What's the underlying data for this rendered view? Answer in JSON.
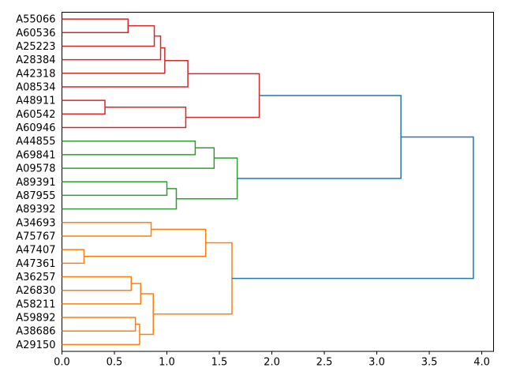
{
  "figure": {
    "background": "#ffffff"
  },
  "chart_data": {
    "type": "dendrogram",
    "orientation": "left-leaves-right-root",
    "title": "",
    "xlabel": "",
    "ylabel": "",
    "grid": false,
    "legend": null,
    "xlim": [
      0,
      4.1125
    ],
    "x_tick_values": [
      0,
      0.5,
      1.0,
      1.5,
      2.0,
      2.5,
      3.0,
      3.5,
      4.0
    ],
    "x_ticks": [
      "0.0",
      "0.5",
      "1.0",
      "1.5",
      "2.0",
      "2.5",
      "3.0",
      "3.5",
      "4.0"
    ],
    "leaf_labels": [
      "A55066",
      "A60536",
      "A25223",
      "A28384",
      "A42318",
      "A08534",
      "A48911",
      "A60542",
      "A60946",
      "A44855",
      "A69841",
      "A09578",
      "A89391",
      "A87955",
      "A89392",
      "A34693",
      "A75767",
      "A47407",
      "A47361",
      "A36257",
      "A26830",
      "A58211",
      "A59892",
      "A38686",
      "A29150"
    ],
    "colors": {
      "red": "#d62728",
      "green": "#2ca02c",
      "orange": "#ff7f0e",
      "blue": "#1f77b4",
      "axis": "#000000",
      "text": "#000000"
    },
    "merges": [
      {
        "id": "R1",
        "a": "A55066",
        "b": "A60536",
        "h": 0.63,
        "color": "red"
      },
      {
        "id": "R2",
        "a": "R1",
        "b": "A25223",
        "h": 0.88,
        "color": "red"
      },
      {
        "id": "R3",
        "a": "R2",
        "b": "A28384",
        "h": 0.94,
        "color": "red"
      },
      {
        "id": "R4",
        "a": "R3",
        "b": "A42318",
        "h": 0.98,
        "color": "red"
      },
      {
        "id": "R5",
        "a": "R4",
        "b": "A08534",
        "h": 1.2,
        "color": "red"
      },
      {
        "id": "R6",
        "a": "A48911",
        "b": "A60542",
        "h": 0.41,
        "color": "red"
      },
      {
        "id": "R7",
        "a": "R6",
        "b": "A60946",
        "h": 1.18,
        "color": "red"
      },
      {
        "id": "R8",
        "a": "R5",
        "b": "R7",
        "h": 1.88,
        "color": "red"
      },
      {
        "id": "G1",
        "a": "A44855",
        "b": "A69841",
        "h": 1.27,
        "color": "green"
      },
      {
        "id": "G2",
        "a": "G1",
        "b": "A09578",
        "h": 1.45,
        "color": "green"
      },
      {
        "id": "G3",
        "a": "A89391",
        "b": "A87955",
        "h": 1.0,
        "color": "green"
      },
      {
        "id": "G4",
        "a": "G3",
        "b": "A89392",
        "h": 1.09,
        "color": "green"
      },
      {
        "id": "G5",
        "a": "G2",
        "b": "G4",
        "h": 1.67,
        "color": "green"
      },
      {
        "id": "O1",
        "a": "A34693",
        "b": "A75767",
        "h": 0.85,
        "color": "orange"
      },
      {
        "id": "O2",
        "a": "A47407",
        "b": "A47361",
        "h": 0.21,
        "color": "orange"
      },
      {
        "id": "O3",
        "a": "O1",
        "b": "O2",
        "h": 1.37,
        "color": "orange"
      },
      {
        "id": "O4",
        "a": "A36257",
        "b": "A26830",
        "h": 0.66,
        "color": "orange"
      },
      {
        "id": "O5",
        "a": "O4",
        "b": "A58211",
        "h": 0.75,
        "color": "orange"
      },
      {
        "id": "O6",
        "a": "A59892",
        "b": "A38686",
        "h": 0.7,
        "color": "orange"
      },
      {
        "id": "O7",
        "a": "O6",
        "b": "A29150",
        "h": 0.74,
        "color": "orange"
      },
      {
        "id": "O8",
        "a": "O5",
        "b": "O7",
        "h": 0.87,
        "color": "orange"
      },
      {
        "id": "O9",
        "a": "O3",
        "b": "O8",
        "h": 1.62,
        "color": "orange"
      },
      {
        "id": "B1",
        "a": "R8",
        "b": "G5",
        "h": 3.23,
        "color": "blue"
      },
      {
        "id": "B2",
        "a": "B1",
        "b": "O9",
        "h": 3.92,
        "color": "blue"
      }
    ]
  }
}
